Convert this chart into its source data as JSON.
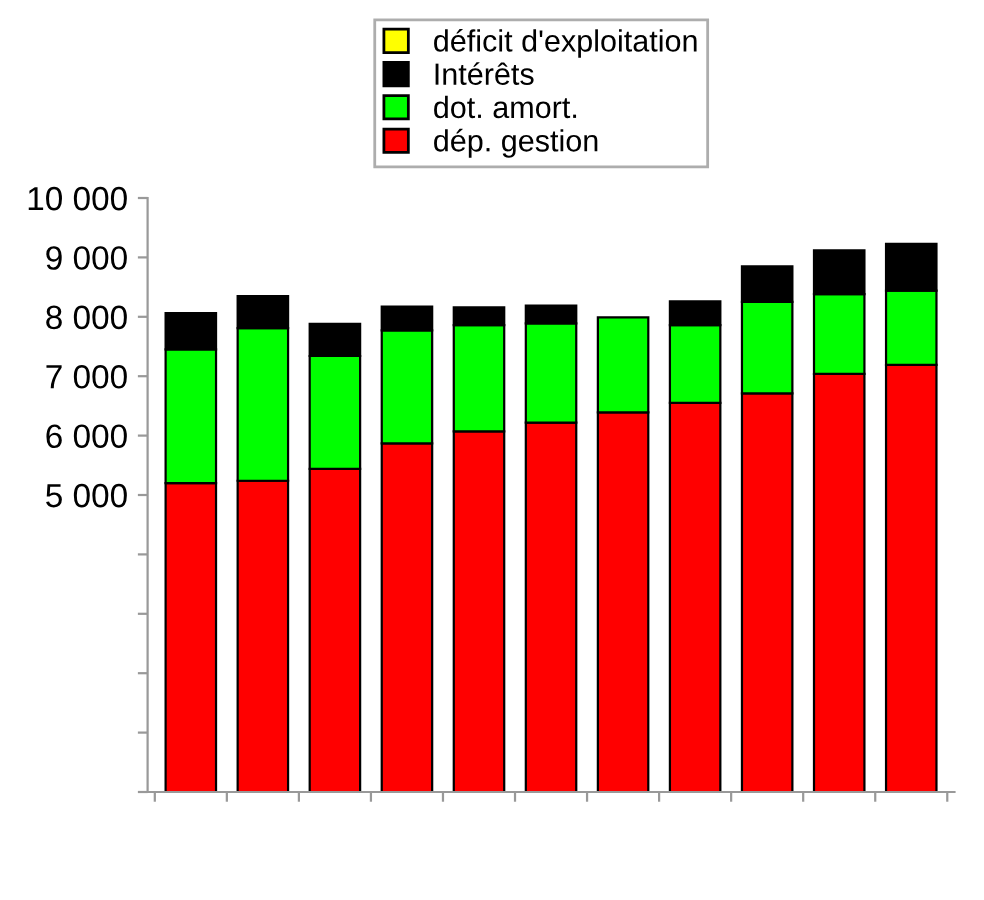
{
  "chart_data": {
    "type": "bar",
    "stacked": true,
    "categories": [
      null,
      null,
      null,
      null,
      null,
      null,
      null,
      null,
      null,
      null,
      null
    ],
    "series": [
      {
        "name": "dép. gestion",
        "color": "#ff0000",
        "values": [
          5200,
          5240,
          5440,
          5870,
          6070,
          6220,
          6390,
          6550,
          6710,
          7040,
          7190
        ]
      },
      {
        "name": "dot. amort.",
        "color": "#00ff00",
        "values": [
          2250,
          2570,
          1900,
          1900,
          1790,
          1670,
          1600,
          1310,
          1540,
          1340,
          1250
        ]
      },
      {
        "name": "Intérêts",
        "color": "#000000",
        "values": [
          610,
          540,
          540,
          400,
          300,
          300,
          null,
          400,
          600,
          740,
          790
        ]
      },
      {
        "name": "déficit d'exploitation",
        "color": "#ffff00",
        "values": [
          null,
          null,
          null,
          null,
          null,
          null,
          null,
          null,
          null,
          null,
          null
        ]
      }
    ],
    "ylim": [
      0,
      10000
    ],
    "yticks": [
      {
        "value": 0,
        "label": null
      },
      {
        "value": 1000,
        "label": null
      },
      {
        "value": 2000,
        "label": null
      },
      {
        "value": 3000,
        "label": null
      },
      {
        "value": 4000,
        "label": null
      },
      {
        "value": 5000,
        "label": "5 000"
      },
      {
        "value": 6000,
        "label": "6 000"
      },
      {
        "value": 7000,
        "label": "7 000"
      },
      {
        "value": 8000,
        "label": "8 000"
      },
      {
        "value": 9000,
        "label": "9 000"
      },
      {
        "value": 10000,
        "label": "10 000"
      }
    ],
    "legend": "top",
    "grid": false
  }
}
